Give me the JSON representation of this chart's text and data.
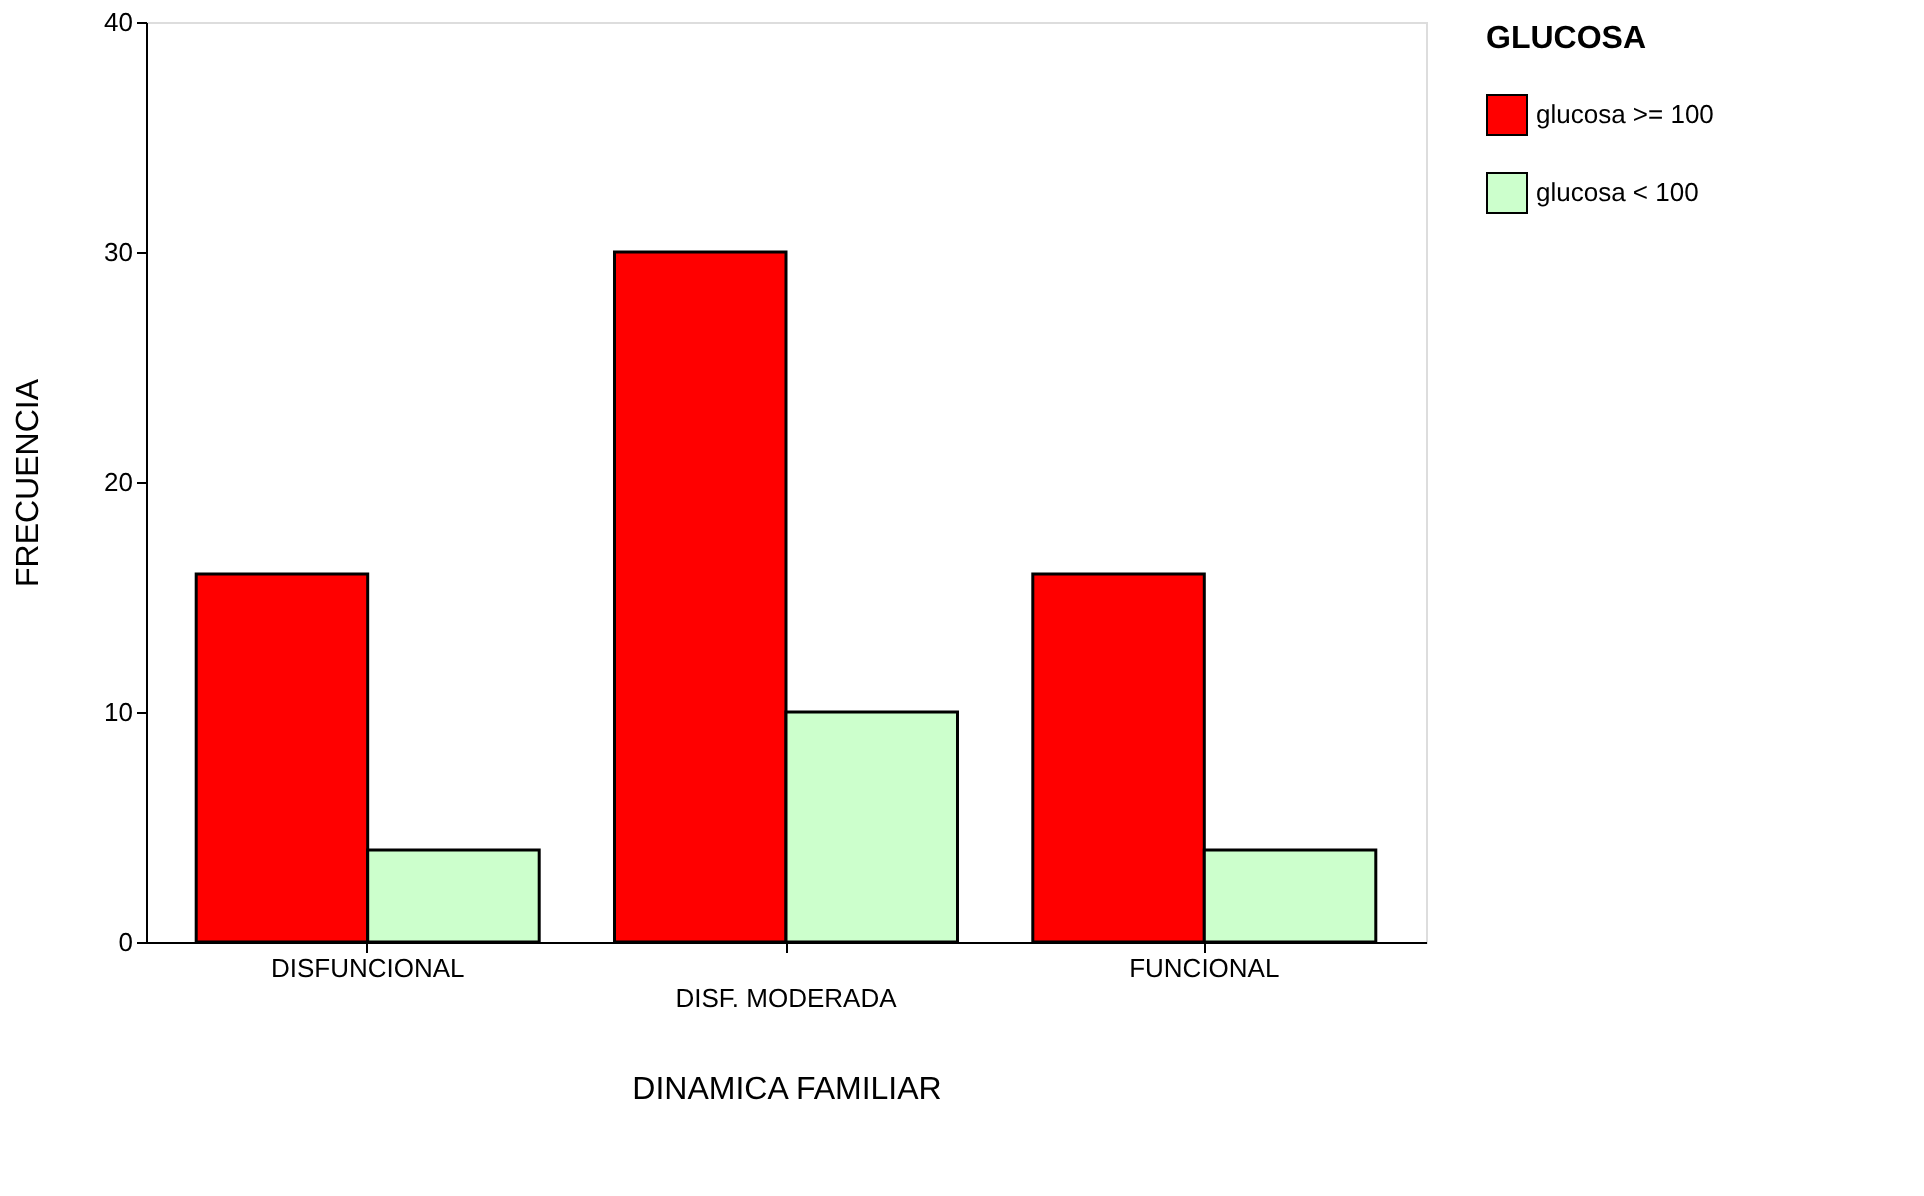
{
  "chart_data": {
    "type": "bar",
    "xlabel": "DINAMICA FAMILIAR",
    "ylabel": "FRECUENCIA",
    "legend_title": "GLUCOSA",
    "legend": "right",
    "categories": [
      "DISFUNCIONAL",
      "DISF. MODERADA",
      "FUNCIONAL"
    ],
    "series": [
      {
        "name": "glucosa >= 100",
        "color": "#ff0000",
        "values": [
          16,
          30,
          16
        ]
      },
      {
        "name": "glucosa < 100",
        "color": "#ccffcc",
        "values": [
          4,
          10,
          4
        ]
      }
    ],
    "ylim": [
      0,
      40
    ],
    "yticks": [
      0,
      10,
      20,
      30,
      40
    ],
    "grid": false
  }
}
